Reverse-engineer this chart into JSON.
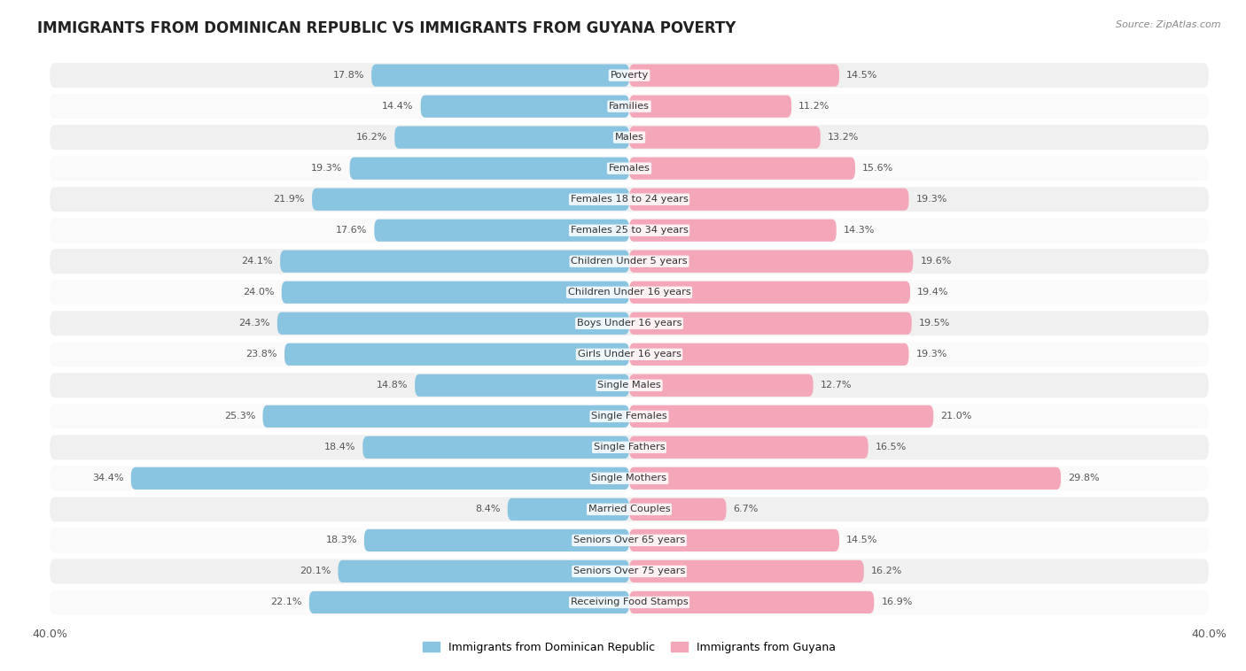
{
  "title": "IMMIGRANTS FROM DOMINICAN REPUBLIC VS IMMIGRANTS FROM GUYANA POVERTY",
  "source": "Source: ZipAtlas.com",
  "categories": [
    "Poverty",
    "Families",
    "Males",
    "Females",
    "Females 18 to 24 years",
    "Females 25 to 34 years",
    "Children Under 5 years",
    "Children Under 16 years",
    "Boys Under 16 years",
    "Girls Under 16 years",
    "Single Males",
    "Single Females",
    "Single Fathers",
    "Single Mothers",
    "Married Couples",
    "Seniors Over 65 years",
    "Seniors Over 75 years",
    "Receiving Food Stamps"
  ],
  "left_values": [
    17.8,
    14.4,
    16.2,
    19.3,
    21.9,
    17.6,
    24.1,
    24.0,
    24.3,
    23.8,
    14.8,
    25.3,
    18.4,
    34.4,
    8.4,
    18.3,
    20.1,
    22.1
  ],
  "right_values": [
    14.5,
    11.2,
    13.2,
    15.6,
    19.3,
    14.3,
    19.6,
    19.4,
    19.5,
    19.3,
    12.7,
    21.0,
    16.5,
    29.8,
    6.7,
    14.5,
    16.2,
    16.9
  ],
  "left_color": "#89c4e1",
  "right_color": "#f4a7b9",
  "left_label": "Immigrants from Dominican Republic",
  "right_label": "Immigrants from Guyana",
  "axis_max": 40.0,
  "row_bg_odd": "#f0f0f0",
  "row_bg_even": "#fafafa",
  "title_fontsize": 12,
  "label_fontsize": 8.2,
  "value_fontsize": 8.0
}
